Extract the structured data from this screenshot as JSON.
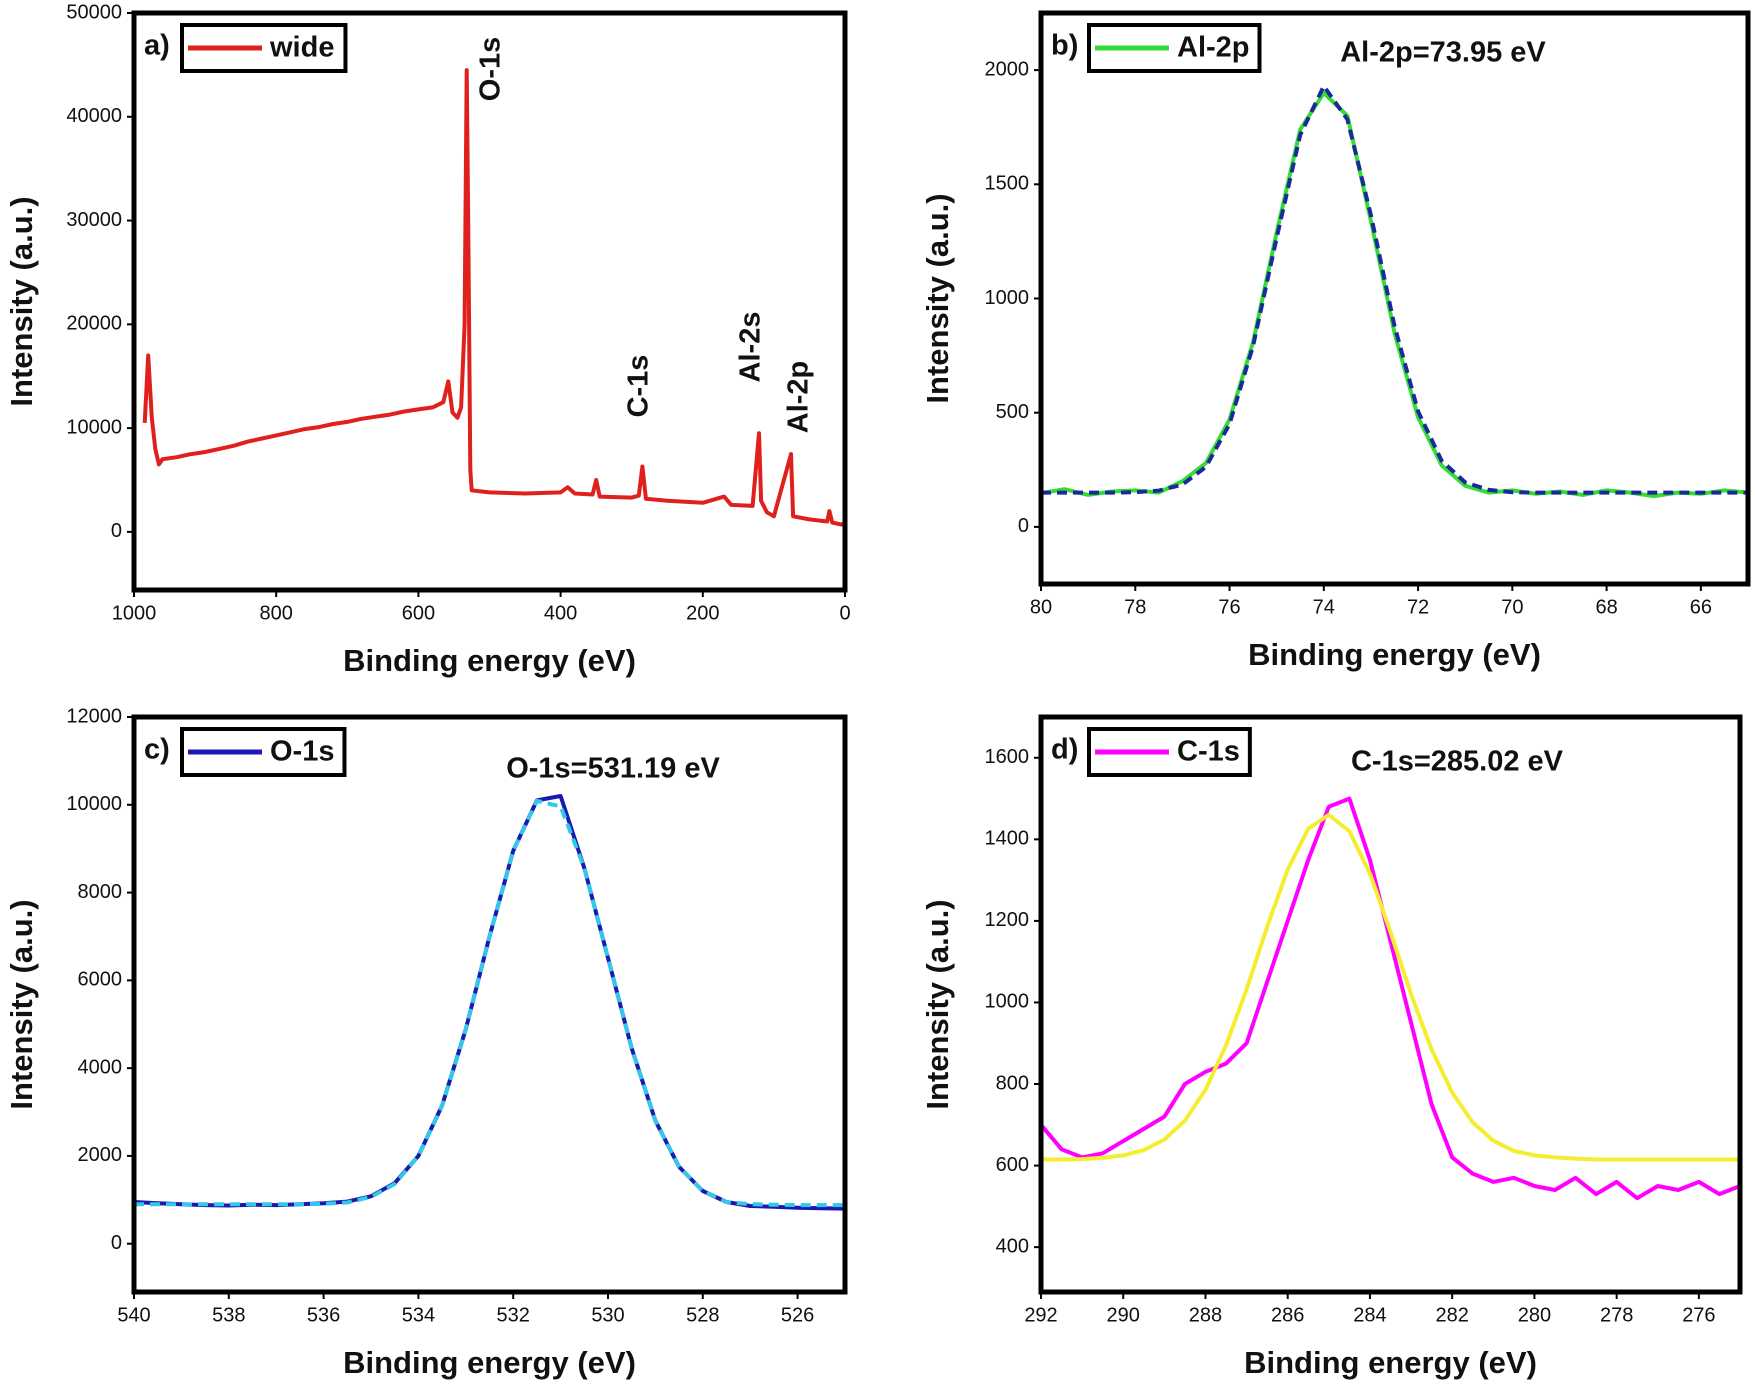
{
  "chart_data": [
    {
      "type": "line",
      "panel_label": "a)",
      "x_label": "Binding energy (eV)",
      "y_label": "Intensity (a.u.)",
      "xlim": [
        1000,
        0
      ],
      "ylim": [
        -5600,
        50000
      ],
      "xticks": [
        1000,
        800,
        600,
        400,
        200,
        0
      ],
      "yticks": [
        0,
        10000,
        20000,
        30000,
        40000,
        50000
      ],
      "legend": "upper left",
      "annotations": [
        "O-1s",
        "C-1s",
        "Al-2s",
        "Al-2p"
      ],
      "x": [
        985,
        980,
        975,
        970,
        965,
        960,
        940,
        920,
        900,
        880,
        860,
        840,
        820,
        800,
        780,
        760,
        740,
        720,
        700,
        680,
        660,
        640,
        620,
        600,
        580,
        565,
        558,
        552,
        545,
        540,
        535,
        532,
        530,
        527,
        525,
        500,
        450,
        400,
        390,
        380,
        355,
        350,
        345,
        300,
        290,
        285,
        280,
        250,
        200,
        170,
        160,
        130,
        121,
        118,
        110,
        100,
        76,
        73,
        50,
        25,
        22,
        18,
        5,
        0
      ],
      "series": [
        {
          "name": "wide",
          "color": "#e0201c",
          "values": [
            10500,
            17000,
            11000,
            8000,
            6500,
            7000,
            7200,
            7500,
            7700,
            8000,
            8300,
            8700,
            9000,
            9300,
            9600,
            9900,
            10100,
            10400,
            10600,
            10900,
            11100,
            11300,
            11600,
            11800,
            12000,
            12500,
            14500,
            11500,
            11000,
            12000,
            20000,
            44500,
            30000,
            6000,
            4000,
            3800,
            3700,
            3800,
            4300,
            3700,
            3600,
            5000,
            3400,
            3300,
            3500,
            6300,
            3200,
            3000,
            2800,
            3400,
            2600,
            2500,
            9500,
            3000,
            1900,
            1500,
            7500,
            1500,
            1200,
            1000,
            2000,
            900,
            700,
            900
          ]
        }
      ]
    },
    {
      "type": "line",
      "panel_label": "b)",
      "x_label": "Binding energy (eV)",
      "y_label": "Intensity (a.u.)",
      "xlim": [
        80,
        65
      ],
      "ylim": [
        -250,
        2250
      ],
      "xticks": [
        80,
        78,
        76,
        74,
        72,
        70,
        68,
        66
      ],
      "yticks": [
        0,
        500,
        1000,
        1500,
        2000
      ],
      "legend": "upper left",
      "annotations": [
        "Al-2p=73.95 eV"
      ],
      "x": [
        80,
        79.5,
        79,
        78.5,
        78,
        77.5,
        77,
        76.5,
        76,
        75.5,
        75,
        74.5,
        74,
        73.5,
        73,
        72.5,
        72,
        71.5,
        71,
        70.5,
        70,
        69.5,
        69,
        68.5,
        68,
        67.5,
        67,
        66.5,
        66,
        65.5,
        65
      ],
      "series": [
        {
          "name": "Al-2p",
          "color": "#33dd33",
          "values": [
            148,
            165,
            140,
            155,
            160,
            150,
            200,
            280,
            470,
            810,
            1290,
            1740,
            1900,
            1800,
            1340,
            850,
            480,
            270,
            180,
            150,
            160,
            145,
            155,
            140,
            160,
            150,
            135,
            150,
            145,
            160,
            150
          ]
        },
        {
          "color": "#1a2a9a",
          "dashed": true,
          "values": [
            150,
            150,
            150,
            150,
            152,
            159,
            185,
            263,
            450,
            793,
            1266,
            1716,
            1930,
            1784,
            1365,
            880,
            506,
            290,
            195,
            162,
            152,
            150,
            150,
            150,
            150,
            150,
            150,
            150,
            150,
            150,
            150
          ]
        }
      ]
    },
    {
      "type": "line",
      "panel_label": "c)",
      "x_label": "Binding energy (eV)",
      "y_label": "Intensity (a.u.)",
      "xlim": [
        540,
        525
      ],
      "ylim": [
        -1100,
        12000
      ],
      "xticks": [
        540,
        538,
        536,
        534,
        532,
        530,
        528,
        526
      ],
      "yticks": [
        0,
        2000,
        4000,
        6000,
        8000,
        10000,
        12000
      ],
      "legend": "upper left",
      "annotations": [
        "O-1s=531.19 eV"
      ],
      "x": [
        540,
        539.5,
        539,
        538.5,
        538,
        537.5,
        537,
        536.5,
        536,
        535.5,
        535,
        534.5,
        534,
        533.5,
        533,
        532.5,
        532,
        531.5,
        531,
        530.5,
        530,
        529.5,
        529,
        528.5,
        528,
        527.5,
        527,
        526.5,
        526,
        525.5,
        525
      ],
      "series": [
        {
          "name": "O-1s",
          "color": "#1a1ab0",
          "values": [
            950,
            920,
            900,
            880,
            870,
            890,
            880,
            900,
            920,
            960,
            1080,
            1380,
            2000,
            3150,
            4890,
            7000,
            8950,
            10100,
            10200,
            8560,
            6510,
            4450,
            2800,
            1750,
            1200,
            950,
            860,
            840,
            820,
            810,
            800
          ]
        },
        {
          "color": "#33c8e8",
          "dashed": true,
          "values": [
            900,
            900,
            900,
            900,
            900,
            900,
            900,
            900,
            910,
            940,
            1070,
            1360,
            2000,
            3150,
            4890,
            7000,
            8950,
            10090,
            9960,
            8560,
            6510,
            4450,
            2800,
            1750,
            1200,
            950,
            900,
            890,
            880,
            880,
            880
          ]
        }
      ]
    },
    {
      "type": "line",
      "panel_label": "d)",
      "x_label": "Binding energy (eV)",
      "y_label": "Intensity (a.u.)",
      "xlim": [
        292,
        275
      ],
      "ylim": [
        290,
        1700
      ],
      "xticks": [
        292,
        290,
        288,
        286,
        284,
        282,
        280,
        278,
        276
      ],
      "yticks": [
        400,
        600,
        800,
        1000,
        1200,
        1400,
        1600
      ],
      "legend": "upper left",
      "annotations": [
        "C-1s=285.02 eV"
      ],
      "x": [
        292,
        291.5,
        291,
        290.5,
        290,
        289.5,
        289,
        288.5,
        288,
        287.5,
        287,
        286.5,
        286,
        285.5,
        285,
        284.5,
        284,
        283.5,
        283,
        282.5,
        282,
        281.5,
        281,
        280.5,
        280,
        279.5,
        279,
        278.5,
        278,
        277.5,
        277,
        276.5,
        276,
        275.5,
        275
      ],
      "series": [
        {
          "name": "C-1s",
          "color": "#ff00ff",
          "values": [
            700,
            640,
            620,
            630,
            660,
            690,
            720,
            800,
            830,
            850,
            900,
            1050,
            1200,
            1350,
            1480,
            1500,
            1350,
            1150,
            950,
            750,
            620,
            580,
            560,
            570,
            550,
            540,
            570,
            530,
            560,
            520,
            550,
            540,
            560,
            530,
            550
          ]
        },
        {
          "color": "#f5ee30",
          "values": [
            615,
            615,
            616,
            619,
            625,
            638,
            664,
            710,
            786,
            895,
            1032,
            1185,
            1326,
            1426,
            1460,
            1420,
            1316,
            1173,
            1020,
            885,
            779,
            706,
            661,
            636,
            625,
            620,
            617,
            615,
            615,
            615,
            615,
            615,
            615,
            615,
            615
          ]
        }
      ]
    }
  ]
}
